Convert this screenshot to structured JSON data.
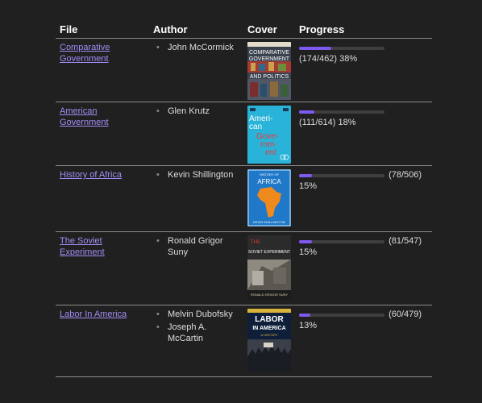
{
  "table": {
    "headers": {
      "file": "File",
      "author": "Author",
      "cover": "Cover",
      "progress": "Progress"
    },
    "rows": [
      {
        "file_line1": "Comparative ",
        "file_line2": "Government",
        "authors": [
          "John McCormick"
        ],
        "cover_icon": "book-cover-comparative-government",
        "cover_text": [
          "COMPARATIVE",
          "GOVERNMENT",
          "AND POLITICS"
        ],
        "progress_text": "(174/462) 38%",
        "progress_fraction": 0.38
      },
      {
        "file_line1": "American ",
        "file_line2": "Government",
        "authors": [
          "Glen Krutz"
        ],
        "cover_icon": "book-cover-american-government",
        "cover_text": [
          "Ameri-",
          "can",
          "Gove-",
          "rnm-",
          "ent"
        ],
        "progress_text": "(111/614) 18%",
        "progress_fraction": 0.18
      },
      {
        "file_line1": "History of Africa",
        "file_line2": "",
        "authors": [
          "Kevin Shillington"
        ],
        "cover_icon": "book-cover-history-of-africa",
        "cover_text": [
          "HISTORY OF",
          "AFRICA",
          "KEVIN SHILLINGTON"
        ],
        "progress_count": "(78/506)",
        "progress_percent": "15%",
        "progress_fraction": 0.15
      },
      {
        "file_line1": "The Soviet ",
        "file_line2": "Experiment",
        "authors": [
          "Ronald Grigor Suny"
        ],
        "cover_icon": "book-cover-soviet-experiment",
        "cover_text": [
          "THE",
          "SOVIET EXPERIMENT",
          "RONALD GRIGOR SUNY"
        ],
        "progress_count": "(81/547)",
        "progress_percent": "15%",
        "progress_fraction": 0.15
      },
      {
        "file_line1": "Labor In America",
        "file_line2": "",
        "authors": [
          "Melvin Dubofsky",
          "Joseph A. McCartin"
        ],
        "cover_icon": "book-cover-labor-in-america",
        "cover_text": [
          "LABOR",
          "IN AMERICA",
          "A HISTORY"
        ],
        "progress_count": "(60/479)",
        "progress_percent": "13%",
        "progress_fraction": 0.13
      }
    ]
  },
  "colors": {
    "background": "#202020",
    "link": "#a38cf4",
    "progress_fill": "#7f5af0",
    "progress_track": "#3f3f3f",
    "divider": "#8a8a8a"
  }
}
